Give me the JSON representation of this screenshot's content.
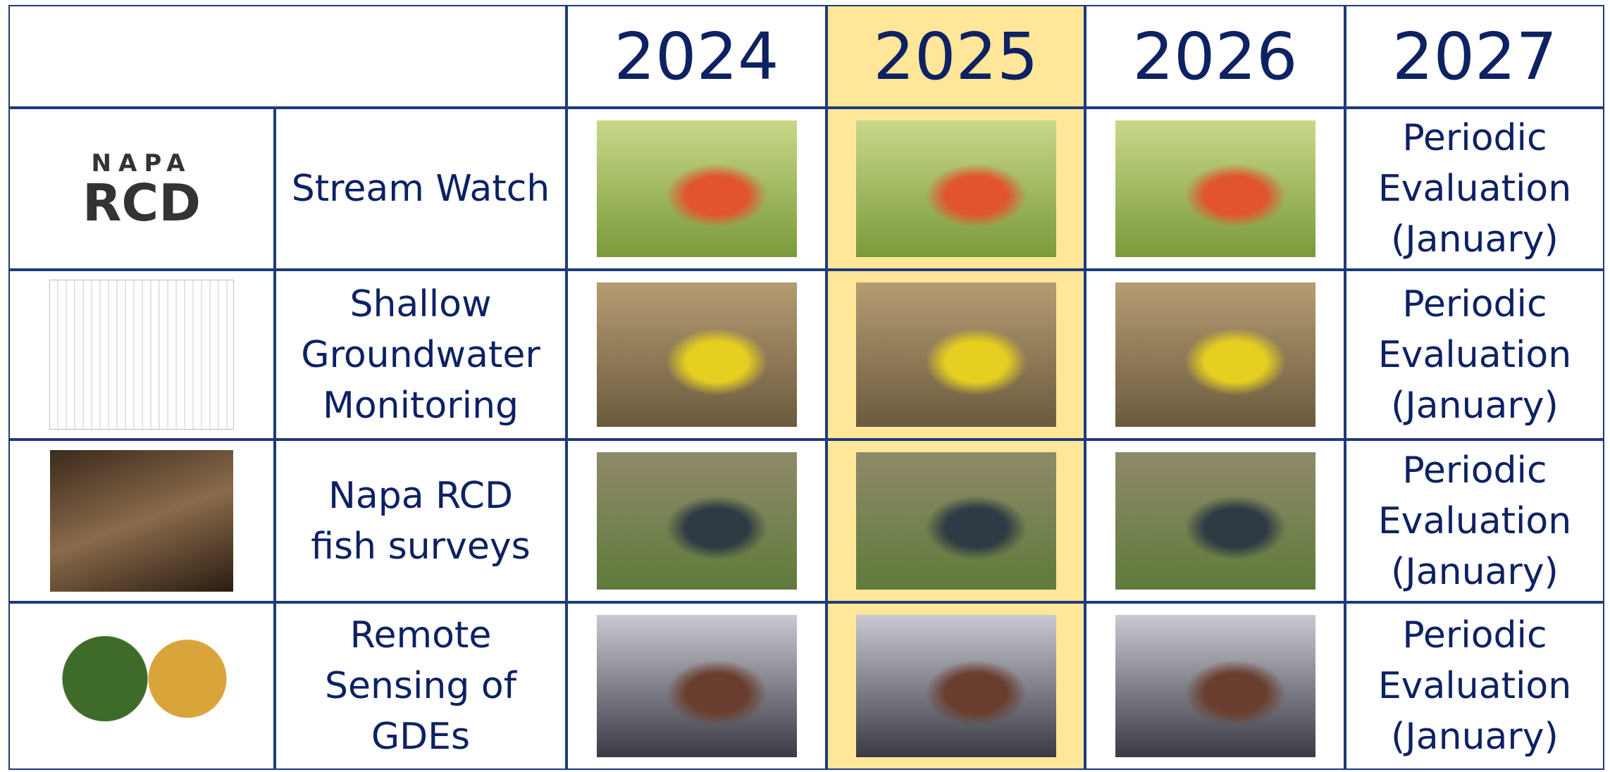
{
  "header": {
    "years": [
      "2024",
      "2025",
      "2026",
      "2027"
    ]
  },
  "logo": {
    "top": "NAPA",
    "bottom": "RCD"
  },
  "rows": [
    {
      "program": "Stream Watch",
      "evaluation": "Periodic Evaluation (January)"
    },
    {
      "program": "Shallow Groundwater Monitoring",
      "evaluation": "Periodic Evaluation (January)"
    },
    {
      "program": "Napa RCD fish surveys",
      "evaluation": "Periodic Evaluation (January)"
    },
    {
      "program": "Remote Sensing of GDEs",
      "evaluation": "Periodic Evaluation (January)"
    }
  ]
}
